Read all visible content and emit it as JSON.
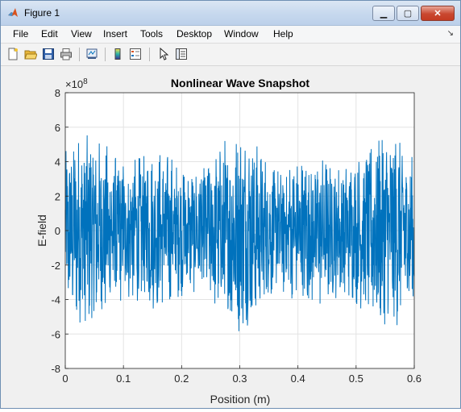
{
  "window": {
    "title": "Figure 1"
  },
  "menu": [
    "File",
    "Edit",
    "View",
    "Insert",
    "Tools",
    "Desktop",
    "Window",
    "Help"
  ],
  "toolbar": {
    "icons": [
      "new-figure-icon",
      "open-file-icon",
      "save-icon",
      "print-icon",
      "link-plot-icon",
      "colorbar-icon",
      "legend-icon",
      "pointer-icon",
      "property-editor-icon"
    ]
  },
  "colors": {
    "series": "#0072bd",
    "axes_bg": "#ffffff",
    "figure_bg": "#f0f0f0"
  },
  "chart_data": {
    "type": "line",
    "title": "Nonlinear Wave Snapshot",
    "xlabel": "Position (m)",
    "ylabel": "E-field",
    "y_exponent_label": "×10",
    "y_exponent_power": "8",
    "xlim": [
      0,
      0.6
    ],
    "ylim": [
      -8,
      8
    ],
    "xticks": [
      "0",
      "0.1",
      "0.2",
      "0.3",
      "0.4",
      "0.5",
      "0.6"
    ],
    "yticks": [
      "-8",
      "-6",
      "-4",
      "-2",
      "0",
      "2",
      "4",
      "6",
      "8"
    ],
    "grid": true,
    "series": [
      {
        "x_range": [
          0,
          0.6
        ],
        "typical_amplitude": 4.5,
        "max_amplitude": 6.2,
        "y_scale": 100000000
      }
    ]
  }
}
